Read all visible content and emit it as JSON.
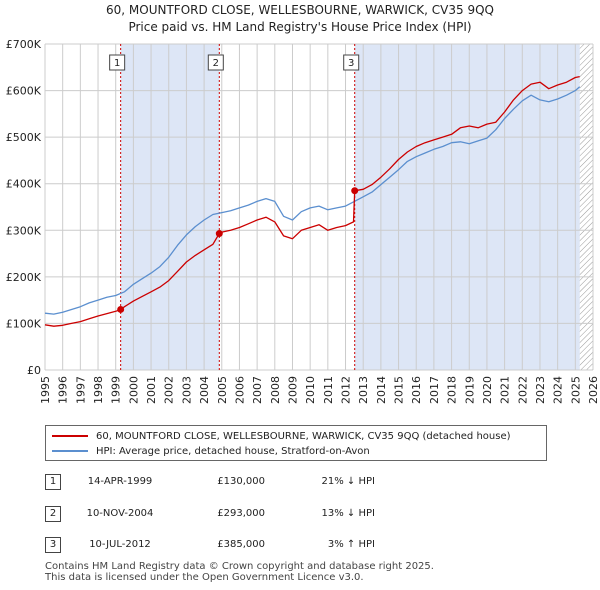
{
  "title_line1": "60, MOUNTFORD CLOSE, WELLESBOURNE, WARWICK, CV35 9QQ",
  "title_line2": "Price paid vs. HM Land Registry's House Price Index (HPI)",
  "colors": {
    "property": "#cc0000",
    "hpi": "#5b8fcf",
    "shade": "#dde6f6",
    "grid": "#cccccc"
  },
  "chart_data": {
    "type": "line",
    "title": "60, MOUNTFORD CLOSE, WELLESBOURNE, WARWICK, CV35 9QQ — Price paid vs. HM Land Registry's House Price Index (HPI)",
    "xlabel": "",
    "ylabel": "",
    "xlim": [
      1995,
      2026
    ],
    "ylim": [
      0,
      700000
    ],
    "y_ticks": [
      0,
      100000,
      200000,
      300000,
      400000,
      500000,
      600000,
      700000
    ],
    "y_tick_labels": [
      "£0",
      "£100K",
      "£200K",
      "£300K",
      "£400K",
      "£500K",
      "£600K",
      "£700K"
    ],
    "x_ticks": [
      1995,
      1996,
      1997,
      1998,
      1999,
      2000,
      2001,
      2002,
      2003,
      2004,
      2005,
      2006,
      2007,
      2008,
      2009,
      2010,
      2011,
      2012,
      2013,
      2014,
      2015,
      2016,
      2017,
      2018,
      2019,
      2020,
      2021,
      2022,
      2023,
      2024,
      2025,
      2026
    ],
    "shaded_ranges": [
      [
        1999.28,
        2004.86
      ],
      [
        2012.52,
        2025.25
      ]
    ],
    "hatched_from": 2025.25,
    "series": [
      {
        "name": "60, MOUNTFORD CLOSE, WELLESBOURNE, WARWICK, CV35 9QQ (detached house)",
        "x": [
          1995,
          1995.5,
          1996,
          1996.5,
          1997,
          1997.5,
          1998,
          1998.5,
          1999,
          1999.28,
          1999.5,
          2000,
          2000.5,
          2001,
          2001.5,
          2002,
          2002.5,
          2003,
          2003.5,
          2004,
          2004.5,
          2004.86,
          2005,
          2005.5,
          2006,
          2006.5,
          2007,
          2007.5,
          2008,
          2008.5,
          2009,
          2009.5,
          2010,
          2010.5,
          2011,
          2011.5,
          2012,
          2012.45,
          2012.52,
          2013,
          2013.5,
          2014,
          2014.5,
          2015,
          2015.5,
          2016,
          2016.5,
          2017,
          2017.5,
          2018,
          2018.5,
          2019,
          2019.5,
          2020,
          2020.5,
          2021,
          2021.5,
          2022,
          2022.5,
          2023,
          2023.5,
          2024,
          2024.5,
          2025,
          2025.25
        ],
        "values": [
          97000,
          94000,
          96000,
          100000,
          104000,
          110000,
          116000,
          121000,
          126000,
          130000,
          136000,
          148000,
          158000,
          168000,
          178000,
          192000,
          212000,
          232000,
          246000,
          258000,
          270000,
          293000,
          296000,
          300000,
          306000,
          314000,
          322000,
          328000,
          318000,
          288000,
          282000,
          300000,
          306000,
          312000,
          300000,
          306000,
          310000,
          318000,
          385000,
          388000,
          398000,
          414000,
          432000,
          452000,
          468000,
          480000,
          488000,
          494000,
          500000,
          506000,
          520000,
          524000,
          520000,
          528000,
          532000,
          554000,
          580000,
          600000,
          614000,
          618000,
          604000,
          612000,
          618000,
          628000,
          630000
        ]
      },
      {
        "name": "HPI: Average price, detached house, Stratford-on-Avon",
        "x": [
          1995,
          1995.5,
          1996,
          1996.5,
          1997,
          1997.5,
          1998,
          1998.5,
          1999,
          1999.5,
          2000,
          2000.5,
          2001,
          2001.5,
          2002,
          2002.5,
          2003,
          2003.5,
          2004,
          2004.5,
          2005,
          2005.5,
          2006,
          2006.5,
          2007,
          2007.5,
          2008,
          2008.5,
          2009,
          2009.5,
          2010,
          2010.5,
          2011,
          2011.5,
          2012,
          2012.5,
          2013,
          2013.5,
          2014,
          2014.5,
          2015,
          2015.5,
          2016,
          2016.5,
          2017,
          2017.5,
          2018,
          2018.5,
          2019,
          2019.5,
          2020,
          2020.5,
          2021,
          2021.5,
          2022,
          2022.5,
          2023,
          2023.5,
          2024,
          2024.5,
          2025,
          2025.25
        ],
        "values": [
          122000,
          120000,
          124000,
          130000,
          136000,
          144000,
          150000,
          156000,
          160000,
          168000,
          184000,
          196000,
          208000,
          222000,
          242000,
          268000,
          290000,
          308000,
          322000,
          334000,
          338000,
          342000,
          348000,
          354000,
          362000,
          368000,
          362000,
          330000,
          322000,
          340000,
          348000,
          352000,
          344000,
          348000,
          352000,
          362000,
          372000,
          382000,
          398000,
          414000,
          430000,
          448000,
          458000,
          466000,
          474000,
          480000,
          488000,
          490000,
          486000,
          492000,
          498000,
          516000,
          540000,
          560000,
          578000,
          590000,
          580000,
          576000,
          582000,
          590000,
          600000,
          608000
        ]
      }
    ],
    "sales": [
      {
        "id": "1",
        "x": 1999.28,
        "value": 130000
      },
      {
        "id": "2",
        "x": 2004.86,
        "value": 293000
      },
      {
        "id": "3",
        "x": 2012.52,
        "value": 385000
      }
    ]
  },
  "legend": {
    "property_label": "60, MOUNTFORD CLOSE, WELLESBOURNE, WARWICK, CV35 9QQ (detached house)",
    "hpi_label": "HPI: Average price, detached house, Stratford-on-Avon"
  },
  "transactions": [
    {
      "num": "1",
      "date": "14-APR-1999",
      "price": "£130,000",
      "hpi_change": "21% ↓ HPI"
    },
    {
      "num": "2",
      "date": "10-NOV-2004",
      "price": "£293,000",
      "hpi_change": "13% ↓ HPI"
    },
    {
      "num": "3",
      "date": "10-JUL-2012",
      "price": "£385,000",
      "hpi_change": "3% ↑ HPI"
    }
  ],
  "footer": {
    "line1": "Contains HM Land Registry data © Crown copyright and database right 2025.",
    "line2": "This data is licensed under the Open Government Licence v3.0."
  }
}
